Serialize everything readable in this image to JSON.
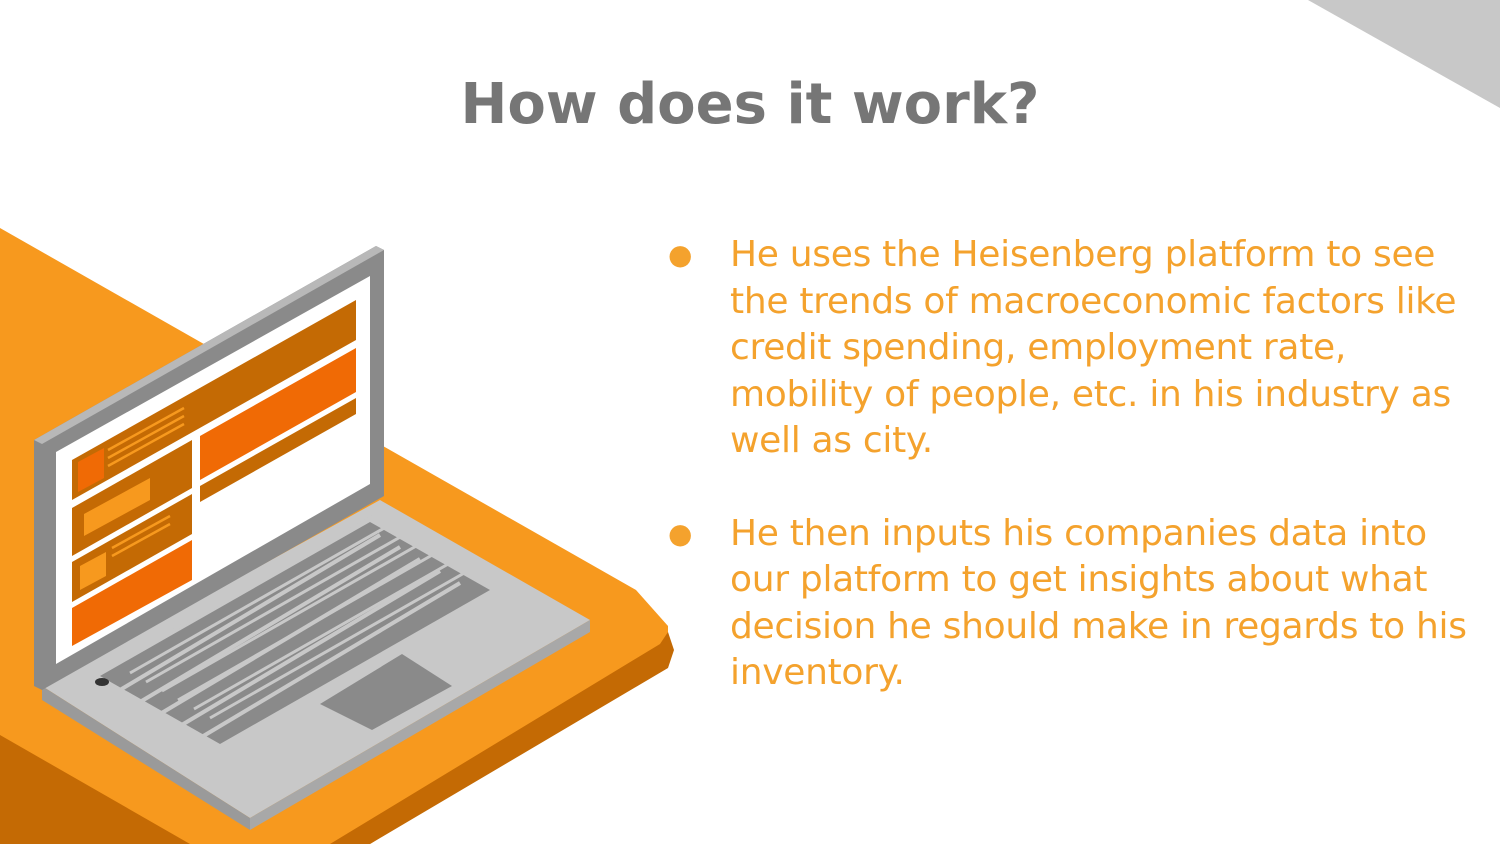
{
  "slide": {
    "title": "How does it work?",
    "bullets": [
      {
        "text": "He uses the Heisenberg platform to see the trends of macroeconomic factors  like credit spending, employment rate, mobility of people, etc. in his industry as well as city."
      },
      {
        "text": "He then inputs his companies data into our platform to get insights about what decision he should make in regards to his inventory."
      }
    ],
    "bullet_marker": "●"
  },
  "colors": {
    "title": "#767676",
    "text": "#f4a22d",
    "accent_orange": "#f7991e",
    "dark_orange": "#c46a04",
    "corner_gray": "#c8c8c8"
  },
  "icons": {
    "illustration": "laptop-illustration"
  }
}
